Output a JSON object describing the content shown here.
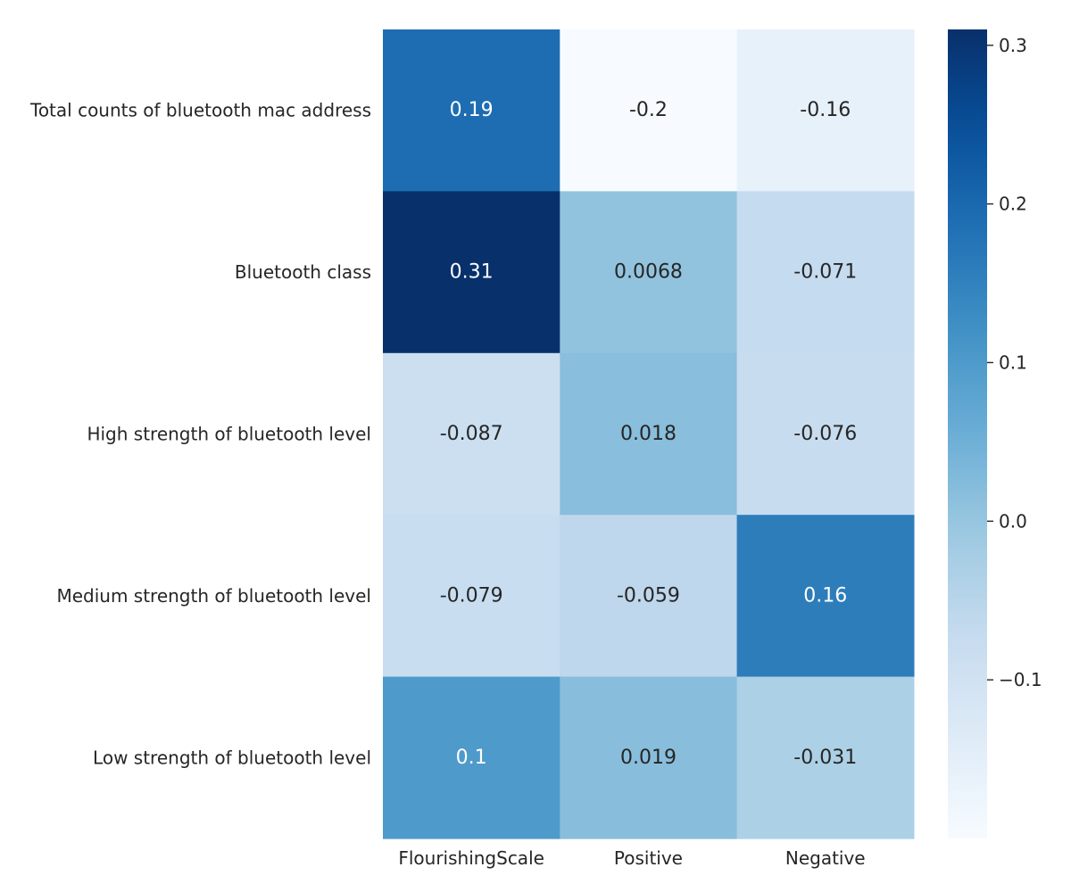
{
  "chart_data": {
    "type": "heatmap",
    "title": "",
    "xlabel": "",
    "ylabel": "",
    "columns": [
      "FlourishingScale",
      "Positive",
      "Negative"
    ],
    "rows": [
      "Total counts of bluetooth mac address",
      "Bluetooth class",
      "High strength of bluetooth level",
      "Medium strength of bluetooth level",
      "Low strength of bluetooth level"
    ],
    "values": [
      [
        0.19,
        -0.2,
        -0.16
      ],
      [
        0.31,
        0.0068,
        -0.071
      ],
      [
        -0.087,
        0.018,
        -0.076
      ],
      [
        -0.079,
        -0.059,
        0.16
      ],
      [
        0.1,
        0.019,
        -0.031
      ]
    ],
    "value_labels": [
      [
        "0.19",
        "-0.2",
        "-0.16"
      ],
      [
        "0.31",
        "0.0068",
        "-0.071"
      ],
      [
        "-0.087",
        "0.018",
        "-0.076"
      ],
      [
        "-0.079",
        "-0.059",
        "0.16"
      ],
      [
        "0.1",
        "0.019",
        "-0.031"
      ]
    ],
    "colormap": "Blues",
    "colorbar": {
      "vmin": -0.2,
      "vmax": 0.31,
      "ticks": [
        -0.1,
        0.0,
        0.1,
        0.2,
        0.3
      ],
      "tick_labels": [
        "−0.1",
        "0.0",
        "0.1",
        "0.2",
        "0.3"
      ]
    },
    "grid": false,
    "annotation_colors": {
      "dark": "#262626",
      "light": "#ffffff"
    }
  }
}
